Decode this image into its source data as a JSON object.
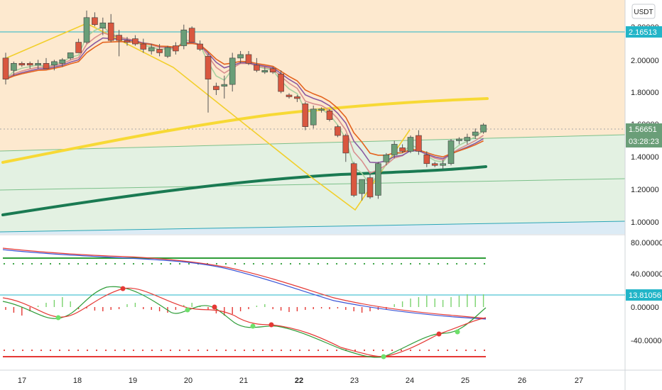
{
  "symbol_badge": "USDT",
  "colors": {
    "up": "#6a9e78",
    "down": "#d9573f",
    "band_upper": "#fde9cf",
    "band_mid": "#e3f1e2",
    "band_low": "#dcebf5",
    "yellow": "#f7d935",
    "dark_green": "#1a7a52",
    "orange_ma": "#e4631e",
    "purple_ma": "#8a5aa0",
    "pink_ma": "#d98f8f",
    "light_green_ma": "#a9d1a0",
    "cyan": "#22b5c8",
    "red_signal": "#e53935",
    "green_signal": "#2e9d38",
    "blue_signal": "#3b55d6"
  },
  "price_axis": {
    "ticks": [
      "1.00000",
      "1.20000",
      "1.40000",
      "1.60000",
      "1.80000",
      "2.00000",
      "2.20000"
    ],
    "hline_tag": "2.16513",
    "last_price_tag": "1.56651",
    "countdown_tag": "03:28:23"
  },
  "osc_axis": {
    "ticks": [
      "80.00000",
      "40.00000",
      "0.00000",
      "-40.00000"
    ],
    "hline_tag": "13.81056"
  },
  "x_axis": {
    "labels": [
      "17",
      "18",
      "19",
      "20",
      "21",
      "22",
      "23",
      "24",
      "25",
      "26",
      "27"
    ],
    "bold_label": "22"
  },
  "chart_data": {
    "type": "candlestick",
    "price_range": [
      0.95,
      2.28
    ],
    "candles": [
      [
        1.95,
        1.98,
        1.8,
        1.83
      ],
      [
        1.88,
        1.93,
        1.85,
        1.92
      ],
      [
        1.92,
        1.93,
        1.9,
        1.91
      ],
      [
        1.92,
        1.93,
        1.89,
        1.91
      ],
      [
        1.91,
        1.94,
        1.89,
        1.92
      ],
      [
        1.92,
        1.95,
        1.89,
        1.89
      ],
      [
        1.91,
        1.94,
        1.88,
        1.93
      ],
      [
        1.92,
        1.95,
        1.9,
        1.94
      ],
      [
        1.95,
        1.98,
        1.94,
        1.98
      ],
      [
        2.04,
        2.06,
        1.98,
        1.98
      ],
      [
        2.04,
        2.22,
        2.03,
        2.18
      ],
      [
        2.18,
        2.21,
        2.13,
        2.14
      ],
      [
        2.12,
        2.18,
        2.08,
        2.15
      ],
      [
        2.15,
        2.2,
        2.04,
        2.05
      ],
      [
        2.08,
        2.11,
        1.96,
        2.05
      ],
      [
        2.05,
        2.07,
        2.02,
        2.04
      ],
      [
        2.06,
        2.08,
        2.02,
        2.03
      ],
      [
        2.03,
        2.06,
        1.98,
        2.0
      ],
      [
        1.99,
        2.03,
        1.97,
        2.01
      ],
      [
        2.0,
        2.03,
        1.96,
        1.98
      ],
      [
        1.96,
        2.02,
        1.95,
        2.01
      ],
      [
        2.02,
        2.04,
        1.97,
        1.99
      ],
      [
        2.02,
        2.14,
        2.0,
        2.11
      ],
      [
        2.12,
        2.13,
        2.04,
        2.04
      ],
      [
        2.03,
        2.05,
        1.99,
        2.0
      ],
      [
        1.96,
        1.98,
        1.64,
        1.83
      ],
      [
        1.79,
        1.81,
        1.74,
        1.77
      ],
      [
        1.79,
        1.85,
        1.72,
        1.8
      ],
      [
        1.8,
        1.98,
        1.76,
        1.95
      ],
      [
        1.95,
        1.99,
        1.92,
        1.97
      ],
      [
        1.97,
        1.99,
        1.91,
        1.92
      ],
      [
        1.91,
        1.95,
        1.87,
        1.88
      ],
      [
        1.87,
        1.9,
        1.86,
        1.88
      ],
      [
        1.89,
        1.9,
        1.86,
        1.87
      ],
      [
        1.86,
        1.88,
        1.75,
        1.76
      ],
      [
        1.74,
        1.75,
        1.72,
        1.73
      ],
      [
        1.73,
        1.74,
        1.7,
        1.72
      ],
      [
        1.69,
        1.7,
        1.54,
        1.56
      ],
      [
        1.57,
        1.68,
        1.55,
        1.66
      ],
      [
        1.66,
        1.67,
        1.64,
        1.66
      ],
      [
        1.65,
        1.66,
        1.59,
        1.6
      ],
      [
        1.56,
        1.57,
        1.5,
        1.51
      ],
      [
        1.51,
        1.52,
        1.36,
        1.41
      ],
      [
        1.35,
        1.36,
        1.16,
        1.17
      ],
      [
        1.18,
        1.26,
        1.14,
        1.26
      ],
      [
        1.27,
        1.29,
        1.15,
        1.16
      ],
      [
        1.17,
        1.36,
        1.15,
        1.35
      ],
      [
        1.36,
        1.41,
        1.34,
        1.4
      ],
      [
        1.4,
        1.48,
        1.38,
        1.46
      ],
      [
        1.44,
        1.46,
        1.41,
        1.42
      ],
      [
        1.42,
        1.51,
        1.41,
        1.5
      ],
      [
        1.51,
        1.54,
        1.4,
        1.42
      ],
      [
        1.4,
        1.42,
        1.33,
        1.35
      ],
      [
        1.35,
        1.36,
        1.33,
        1.34
      ],
      [
        1.34,
        1.37,
        1.32,
        1.35
      ],
      [
        1.35,
        1.49,
        1.34,
        1.48
      ],
      [
        1.48,
        1.5,
        1.46,
        1.49
      ],
      [
        1.48,
        1.52,
        1.46,
        1.5
      ],
      [
        1.51,
        1.55,
        1.49,
        1.53
      ],
      [
        1.53,
        1.58,
        1.52,
        1.57
      ]
    ],
    "osc_range": [
      -60,
      95
    ],
    "horizontal_levels": {
      "price": 2.16513,
      "osc": 13.81056
    }
  }
}
